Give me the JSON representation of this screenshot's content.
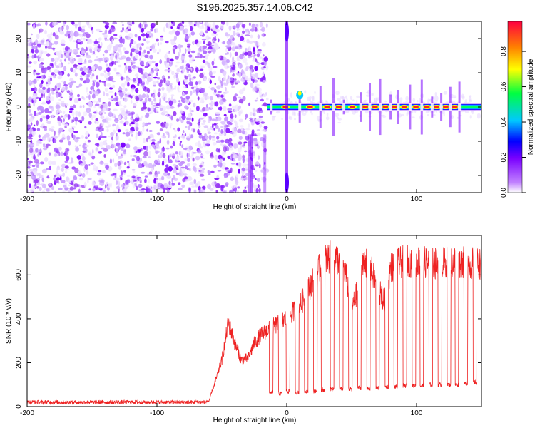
{
  "figure_title": "S196.2025.357.14.06.C42",
  "colors": {
    "snr_line": "#ee2222",
    "spectrogram_noise": "#9a3df2",
    "axis": "#000000",
    "background": "#ffffff"
  },
  "chart_data": [
    {
      "type": "heatmap",
      "title": "",
      "xlabel": "Height of straight line (km)",
      "ylabel": "Frequency (Hz)",
      "xlim": [
        -200,
        150
      ],
      "ylim": [
        -25,
        25
      ],
      "xticks": [
        -200,
        -100,
        0,
        100
      ],
      "xtick_labels": [
        "-200",
        "-100",
        "0",
        "100"
      ],
      "yticks": [
        -20,
        -10,
        0,
        10,
        20
      ],
      "ytick_labels": [
        "-20",
        "-10",
        "0",
        "10",
        "20"
      ],
      "colorbar": {
        "label": "Normalized spectral amplitude",
        "range": [
          0,
          0.97
        ],
        "ticks": [
          0.0,
          0.2,
          0.4,
          0.6,
          0.8
        ],
        "tick_labels": [
          "0.0",
          "0.2",
          "0.4",
          "0.6",
          "0.8"
        ],
        "colormap": [
          "#ffffff",
          "#c080ff",
          "#7a00ff",
          "#0000ff",
          "#00c8ff",
          "#00ff40",
          "#ffff00",
          "#ff8000",
          "#ff0040"
        ]
      },
      "noise_region_x": [
        -200,
        -15
      ],
      "carrier_region_x": [
        -15,
        150
      ],
      "carrier_frequency_hz": 0,
      "strong_tones_x_km": [
        -12,
        10,
        26,
        36,
        44,
        57,
        64,
        72,
        80,
        86,
        95,
        104,
        112,
        119,
        126,
        133
      ],
      "notes": "Left region: speckled noise (purple/lavender). Right region: narrow carrier line near 0 Hz with peaks (red/yellow) between notches."
    },
    {
      "type": "line",
      "title": "",
      "xlabel": "Height of straight line (km)",
      "ylabel": "SNR (10 * v/v)",
      "xlim": [
        -200,
        150
      ],
      "ylim": [
        0,
        780
      ],
      "xticks": [
        -200,
        -100,
        0,
        100
      ],
      "xtick_labels": [
        "-200",
        "-100",
        "0",
        "100"
      ],
      "yticks": [
        0,
        200,
        400,
        600
      ],
      "ytick_labels": [
        "0",
        "200",
        "400",
        "600"
      ],
      "series": [
        {
          "name": "SNR",
          "noise_floor": 20,
          "envelope_x": [
            -200,
            -60,
            -55,
            -50,
            -45,
            -40,
            -35,
            -30,
            -25,
            -20,
            -15,
            -10,
            -5,
            0,
            5,
            10,
            15,
            20,
            25,
            30,
            35,
            40,
            45,
            50,
            55,
            60,
            65,
            70,
            75,
            80,
            90,
            100,
            110,
            120,
            130,
            140,
            150
          ],
          "envelope_y": [
            20,
            25,
            120,
            220,
            400,
            300,
            220,
            230,
            300,
            340,
            360,
            380,
            400,
            420,
            450,
            480,
            530,
            600,
            650,
            700,
            710,
            700,
            650,
            460,
            560,
            700,
            650,
            560,
            500,
            660,
            690,
            690,
            680,
            680,
            690,
            680,
            680
          ],
          "dip_x_km": [
            -12,
            -5,
            1,
            8,
            15,
            22,
            28,
            35,
            42,
            49,
            56,
            63,
            70,
            77,
            84,
            91,
            98,
            104,
            111,
            118,
            125,
            131,
            138,
            145
          ],
          "dip_y": [
            55,
            50,
            60,
            55,
            60,
            60,
            65,
            70,
            70,
            70,
            75,
            70,
            75,
            80,
            80,
            85,
            85,
            85,
            90,
            90,
            90,
            90,
            95,
            100
          ]
        }
      ]
    }
  ]
}
